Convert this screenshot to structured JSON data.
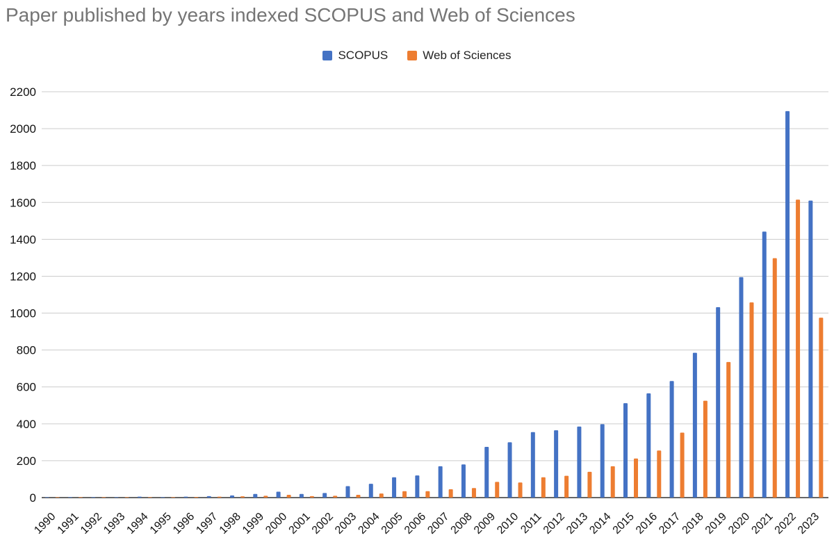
{
  "chart_data": {
    "type": "bar",
    "title": "Paper published by years indexed SCOPUS and Web of Sciences",
    "xlabel": "",
    "ylabel": "",
    "ylim": [
      0,
      2200
    ],
    "yticks": [
      0,
      200,
      400,
      600,
      800,
      1000,
      1200,
      1400,
      1600,
      1800,
      2000,
      2200
    ],
    "grid": true,
    "legend_position": "top-center",
    "categories": [
      "1990",
      "1991",
      "1992",
      "1993",
      "1994",
      "1995",
      "1996",
      "1997",
      "1998",
      "1999",
      "2000",
      "2001",
      "2002",
      "2003",
      "2004",
      "2005",
      "2006",
      "2007",
      "2008",
      "2009",
      "2010",
      "2011",
      "2012",
      "2013",
      "2014",
      "2015",
      "2016",
      "2017",
      "2018",
      "2019",
      "2020",
      "2021",
      "2022",
      "2023"
    ],
    "series": [
      {
        "name": "SCOPUS",
        "color": "#4472c4",
        "values": [
          2,
          3,
          1,
          2,
          5,
          2,
          5,
          8,
          12,
          20,
          32,
          20,
          25,
          62,
          75,
          110,
          120,
          170,
          180,
          275,
          300,
          355,
          365,
          385,
          398,
          512,
          565,
          632,
          785,
          1032,
          1195,
          1442,
          2095,
          1610
        ]
      },
      {
        "name": "Web of Sciences",
        "color": "#ed7d31",
        "values": [
          1,
          1,
          2,
          3,
          3,
          2,
          4,
          5,
          7,
          10,
          15,
          8,
          10,
          15,
          22,
          35,
          35,
          45,
          52,
          85,
          82,
          110,
          118,
          140,
          170,
          212,
          255,
          352,
          525,
          735,
          1058,
          1298,
          1615,
          975
        ]
      }
    ]
  }
}
